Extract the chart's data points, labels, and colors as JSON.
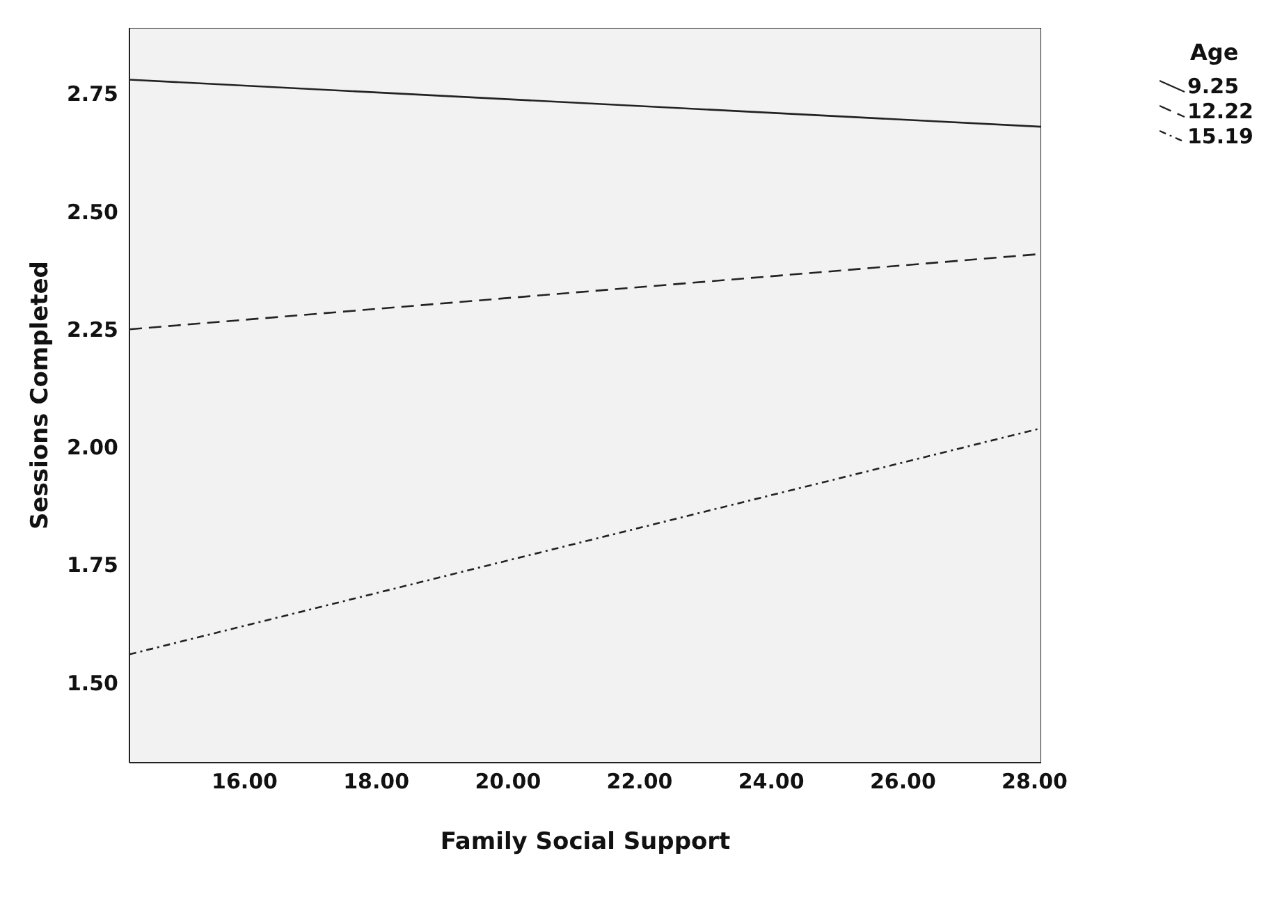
{
  "chart_data": {
    "type": "line",
    "xlabel": "Family Social Support",
    "ylabel": "Sessions Completed",
    "legend_title": "Age",
    "legend": "top right",
    "x": [
      14.25,
      28.1
    ],
    "series": [
      {
        "name": "9.25",
        "color": "#222222",
        "line_style": "solid",
        "values": [
          2.78,
          2.68
        ]
      },
      {
        "name": "12.22",
        "color": "#222222",
        "line_style": "dashed",
        "values": [
          2.25,
          2.41
        ]
      },
      {
        "name": "15.19",
        "color": "#222222",
        "line_style": "dotted",
        "values": [
          1.56,
          2.04
        ]
      }
    ],
    "xlim": [
      14.25,
      28.1
    ],
    "xticks": [
      {
        "value": 16,
        "label": "16.00"
      },
      {
        "value": 18,
        "label": "18.00"
      },
      {
        "value": 20,
        "label": "20.00"
      },
      {
        "value": 22,
        "label": "22.00"
      },
      {
        "value": 24,
        "label": "24.00"
      },
      {
        "value": 26,
        "label": "26.00"
      },
      {
        "value": 28,
        "label": "28.00"
      }
    ],
    "ylim": [
      1.33,
      2.89
    ],
    "yticks": [
      {
        "value": 1.5,
        "label": "1.50"
      },
      {
        "value": 1.75,
        "label": "1.75"
      },
      {
        "value": 2,
        "label": "2.00"
      },
      {
        "value": 2.25,
        "label": "2.25"
      },
      {
        "value": 2.5,
        "label": "2.50"
      },
      {
        "value": 2.75,
        "label": "2.75"
      }
    ],
    "marker": "none"
  }
}
